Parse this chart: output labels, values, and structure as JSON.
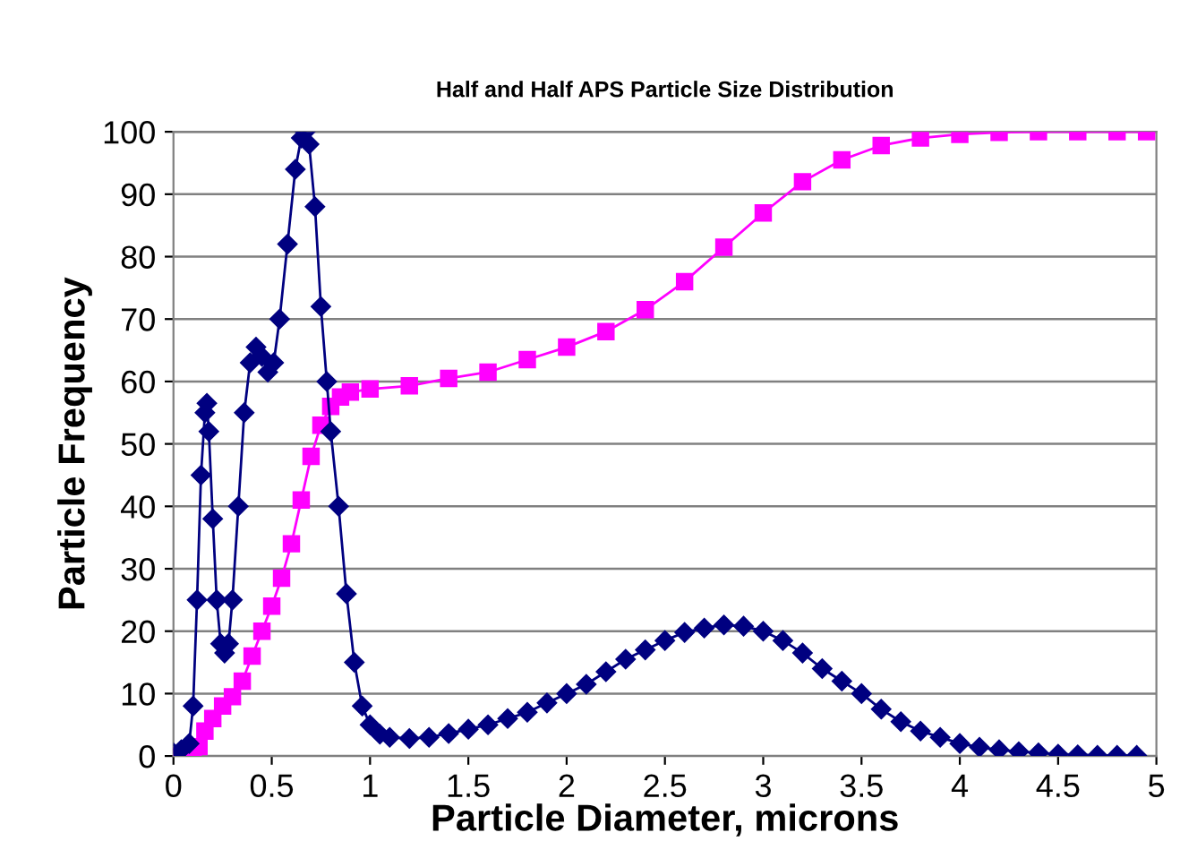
{
  "chart_data": {
    "type": "line",
    "title": "Half and Half APS Particle Size Distribution",
    "xlabel": "Particle Diameter, microns",
    "ylabel": "Particle Frequency",
    "xlim": [
      0,
      5
    ],
    "xticks": [
      0,
      0.5,
      1,
      1.5,
      2,
      2.5,
      3,
      3.5,
      4,
      4.5,
      5
    ],
    "ylim": [
      0,
      100
    ],
    "yticks": [
      0,
      10,
      20,
      30,
      40,
      50,
      60,
      70,
      80,
      90,
      100
    ],
    "grid": "y",
    "legend": false,
    "line_style": "solid",
    "series": [
      {
        "color": "#000080",
        "marker": "diamond",
        "x": [
          0,
          0.04,
          0.08,
          0.1,
          0.12,
          0.14,
          0.16,
          0.17,
          0.18,
          0.2,
          0.22,
          0.24,
          0.26,
          0.28,
          0.3,
          0.33,
          0.36,
          0.39,
          0.42,
          0.45,
          0.48,
          0.51,
          0.54,
          0.58,
          0.62,
          0.65,
          0.67,
          0.69,
          0.72,
          0.75,
          0.78,
          0.8,
          0.84,
          0.88,
          0.92,
          0.96,
          1.0,
          1.05,
          1.1,
          1.2,
          1.3,
          1.4,
          1.5,
          1.6,
          1.7,
          1.8,
          1.9,
          2.0,
          2.1,
          2.2,
          2.3,
          2.4,
          2.5,
          2.6,
          2.7,
          2.8,
          2.9,
          3.0,
          3.1,
          3.2,
          3.3,
          3.4,
          3.5,
          3.6,
          3.7,
          3.8,
          3.9,
          4.0,
          4.1,
          4.2,
          4.3,
          4.4,
          4.5,
          4.6,
          4.7,
          4.8,
          4.9
        ],
        "values": [
          0.5,
          1,
          2,
          8,
          25,
          45,
          55,
          56.5,
          52,
          38,
          25,
          18,
          16.5,
          18,
          25,
          40,
          55,
          63,
          65.5,
          64,
          61.5,
          63,
          70,
          82,
          94,
          99,
          100,
          98,
          88,
          72,
          60,
          52,
          40,
          26,
          15,
          8,
          5,
          3.5,
          3,
          2.8,
          3,
          3.6,
          4.3,
          5,
          6,
          7,
          8.5,
          10,
          11.5,
          13.5,
          15.5,
          17,
          18.5,
          19.8,
          20.5,
          21,
          20.8,
          20,
          18.5,
          16.5,
          14,
          12,
          10,
          7.5,
          5.5,
          4,
          3,
          2,
          1.4,
          1,
          0.7,
          0.5,
          0.3,
          0.2,
          0.1,
          0.1,
          0.1
        ]
      },
      {
        "color": "#ff00ff",
        "marker": "square",
        "x": [
          0,
          0.05,
          0.1,
          0.13,
          0.16,
          0.2,
          0.25,
          0.3,
          0.35,
          0.4,
          0.45,
          0.5,
          0.55,
          0.6,
          0.65,
          0.7,
          0.75,
          0.8,
          0.85,
          0.9,
          1.0,
          1.2,
          1.4,
          1.6,
          1.8,
          2.0,
          2.2,
          2.4,
          2.6,
          2.8,
          3.0,
          3.2,
          3.4,
          3.6,
          3.8,
          4.0,
          4.2,
          4.4,
          4.6,
          4.8,
          4.95
        ],
        "values": [
          0,
          0,
          0,
          1.5,
          4,
          6,
          8,
          9.5,
          12,
          16,
          20,
          24,
          28.5,
          34,
          41,
          48,
          53,
          56,
          57.5,
          58.3,
          58.8,
          59.3,
          60.5,
          61.5,
          63.5,
          65.5,
          68,
          71.5,
          76,
          81.5,
          87,
          92,
          95.5,
          97.8,
          99,
          99.6,
          99.9,
          100,
          100,
          100,
          100
        ]
      }
    ]
  }
}
